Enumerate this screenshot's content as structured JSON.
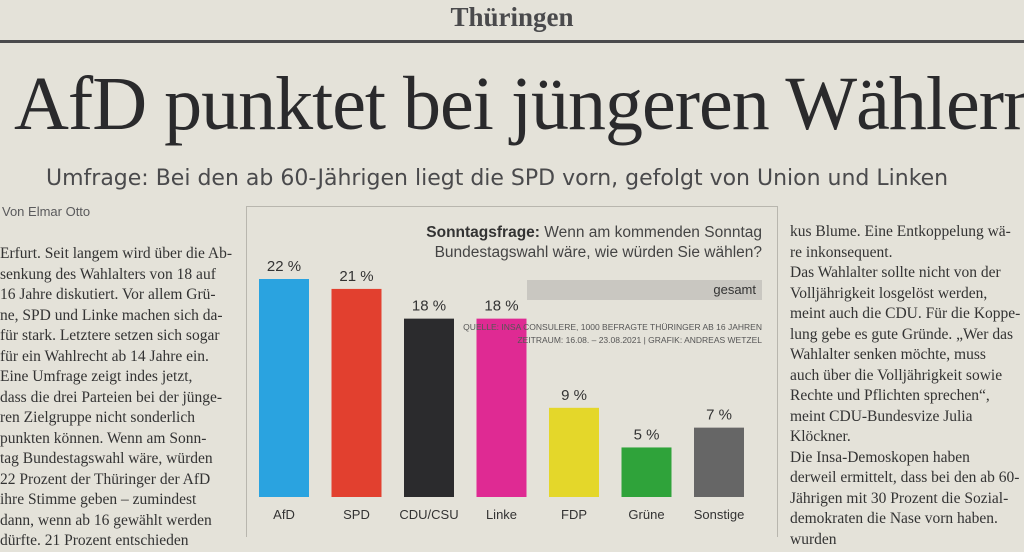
{
  "section": "Thüringen",
  "headline": "AfD punktet bei jüngeren Wählern",
  "subheadline": "Umfrage: Bei den ab 60-Jährigen liegt die SPD vorn, gefolgt von Union und Linken",
  "byline": "Von Elmar Otto",
  "left_column_lines": [
    "Erfurt. Seit langem wird über die Ab-",
    "senkung des Wahlalters von 18 auf",
    "16 Jahre diskutiert. Vor allem Grü-",
    "ne, SPD und Linke machen sich da-",
    "für stark. Letztere setzen sich sogar",
    "für ein Wahlrecht ab 14 Jahre ein.",
    "Eine Umfrage zeigt indes jetzt,",
    "dass die drei Parteien bei der jünge-",
    "ren Zielgruppe nicht sonderlich",
    "punkten können. Wenn am Sonn-",
    "tag Bundestagswahl wäre, würden",
    "22 Prozent der Thüringer der AfD",
    "ihre Stimme geben – zumindest",
    "dann, wenn ab 16 gewählt werden",
    "dürfte. 21 Prozent entschieden"
  ],
  "right_column_lines": [
    "kus Blume. Eine Entkoppelung wä-",
    "re inkonsequent.",
    "Das Wahlalter sollte nicht von der",
    "Volljährigkeit losgelöst werden,",
    "meint auch die CDU. Für die Koppe-",
    "lung gebe es gute Gründe. „Wer das",
    "Wahlalter senken möchte, muss",
    "auch über die Volljährigkeit sowie",
    "Rechte und Pflichten sprechen“,",
    "meint CDU-Bundesvize Julia",
    "Klöckner.",
    "Die Insa-Demoskopen haben",
    "derweil ermittelt, dass bei den ab 60-",
    "Jährigen mit 30 Prozent die Sozial-",
    "demokraten die Nase vorn haben.",
    "wurden"
  ],
  "chart_data": {
    "type": "bar",
    "title_bold": "Sonntagsfrage:",
    "title_rest": "Wenn am kommenden Sonntag Bundestagswahl wäre, wie würden Sie wählen?",
    "subtitle": "gesamt",
    "source_line1": "Quelle: INSA Consulere, 1000 befragte Thüringer ab 16 Jahren",
    "source_line2": "Zeitraum: 16.08. – 23.08.2021 | Grafik: Andreas Wetzel",
    "categories": [
      "AfD",
      "SPD",
      "CDU/CSU",
      "Linke",
      "FDP",
      "Grüne",
      "Sonstige"
    ],
    "values": [
      22,
      21,
      18,
      18,
      9,
      5,
      7
    ],
    "value_labels": [
      "22 %",
      "21 %",
      "18 %",
      "18 %",
      "9 %",
      "5 %",
      "7 %"
    ],
    "colors": [
      "#2aa3e0",
      "#e2402f",
      "#2b2b2d",
      "#df2a93",
      "#e4d72a",
      "#2fa33a",
      "#666666"
    ],
    "ylim": [
      0,
      22
    ]
  }
}
